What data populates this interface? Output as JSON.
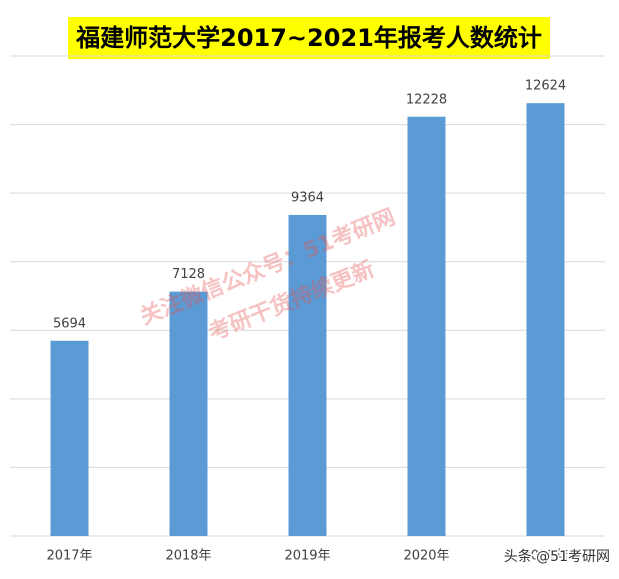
{
  "chart_data": {
    "type": "bar",
    "title": "福建师范大学2017~2021年报考人数统计",
    "categories": [
      "2017年",
      "2018年",
      "2019年",
      "2020年",
      "2021年"
    ],
    "values": [
      5694,
      7128,
      9364,
      12228,
      12624
    ],
    "color": "#5b9bd5",
    "ylim": [
      0,
      14000
    ],
    "yticks": [
      0,
      2000,
      4000,
      6000,
      8000,
      10000,
      12000,
      14000
    ],
    "grid": true,
    "watermark": [
      "关注微信公众号：51考研网",
      "考研干货持续更新"
    ],
    "credit": "头条 @51考研网"
  }
}
